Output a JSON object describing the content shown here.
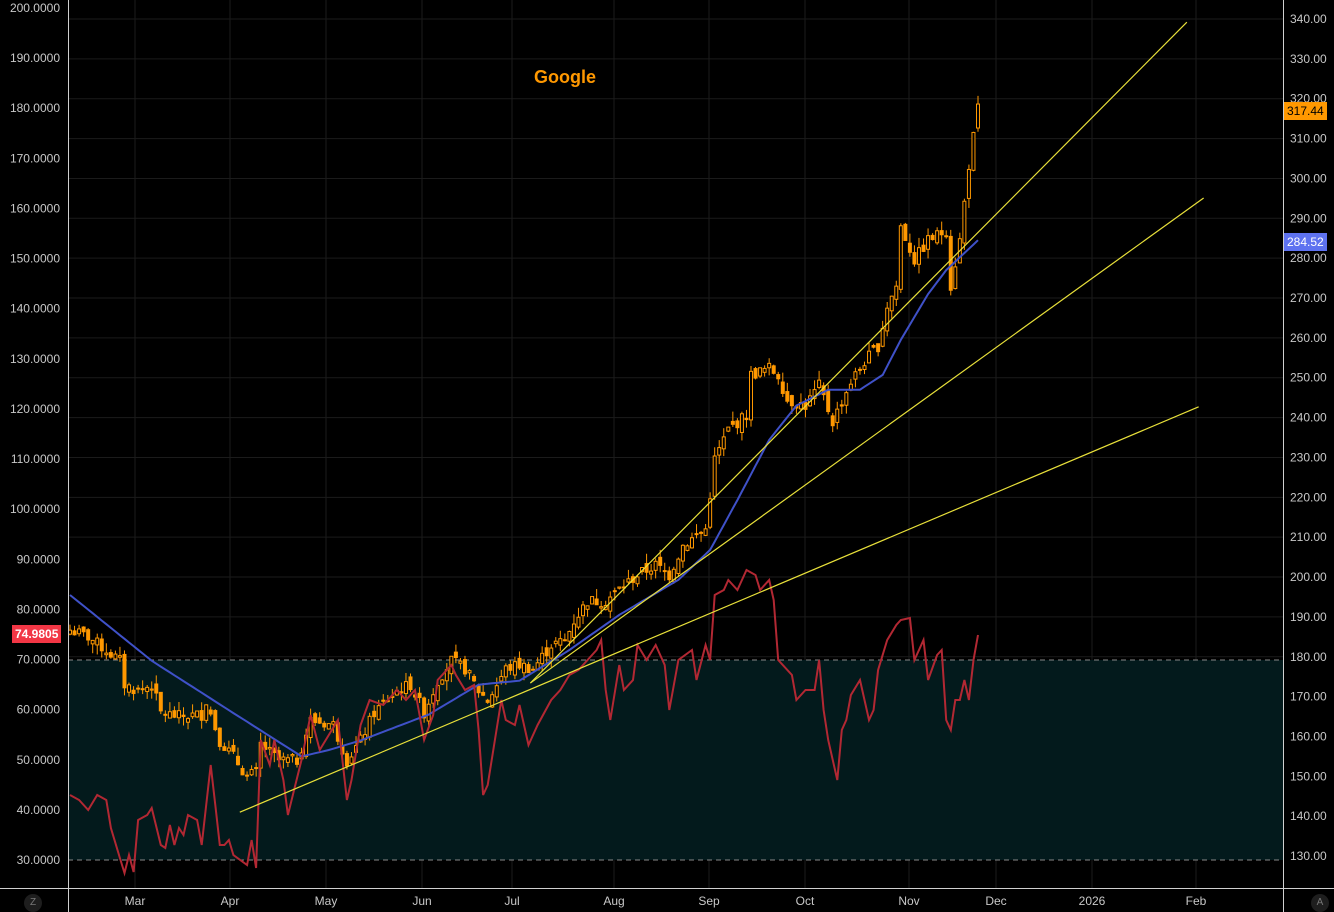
{
  "chart_data": {
    "type": "candlestick",
    "title": "Google",
    "n_bars": 201,
    "price_axis": {
      "side": "right",
      "range": [
        122,
        342
      ],
      "ticks": [
        130,
        140,
        150,
        160,
        170,
        180,
        190,
        200,
        210,
        220,
        230,
        240,
        250,
        260,
        270,
        280,
        290,
        300,
        310,
        320,
        330,
        340
      ]
    },
    "rsi_axis": {
      "side": "left",
      "range": [
        24.6,
        201
      ],
      "ticks": [
        "200.0000",
        "190.0000",
        "180.0000",
        "170.0000",
        "160.0000",
        "150.0000",
        "140.0000",
        "130.0000",
        "120.0000",
        "110.0000",
        "100.0000",
        "90.0000",
        "80.0000",
        "70.0000",
        "60.0000",
        "50.0000",
        "40.0000",
        "30.0000"
      ],
      "overbought": 70,
      "oversold": 30
    },
    "x_ticks": [
      "Mar",
      "Apr",
      "May",
      "Jun",
      "Jul",
      "Aug",
      "Sep",
      "Oct",
      "Nov",
      "Dec",
      "2026",
      "Feb"
    ],
    "last_price": "317.44",
    "ma_last": "284.52",
    "rsi_last": "74.9805",
    "colors": {
      "candle": "#ff9800",
      "ma": "#3f51c8",
      "rsi": "#b22833",
      "trend": "#e8e03a",
      "last_price_bg": "#ff9800",
      "ma_bg": "#5e72f0",
      "rsi_bg": "#f23645",
      "band": "#031a1c"
    },
    "close_anchors": [
      [
        0,
        186.7
      ],
      [
        4,
        185
      ],
      [
        11,
        179
      ],
      [
        12,
        173
      ],
      [
        15,
        171.5
      ],
      [
        18,
        173
      ],
      [
        20,
        166
      ],
      [
        24,
        165
      ],
      [
        29,
        165.5
      ],
      [
        30,
        169
      ],
      [
        33,
        159
      ],
      [
        36,
        155
      ],
      [
        39,
        150
      ],
      [
        41,
        151
      ],
      [
        42,
        158
      ],
      [
        46,
        154
      ],
      [
        50,
        154
      ],
      [
        53,
        164
      ],
      [
        58,
        163
      ],
      [
        61,
        154
      ],
      [
        64,
        159
      ],
      [
        67,
        166
      ],
      [
        72,
        171.5
      ],
      [
        75,
        173
      ],
      [
        78,
        166
      ],
      [
        81,
        174
      ],
      [
        84,
        179
      ],
      [
        87,
        177
      ],
      [
        90,
        171.5
      ],
      [
        92,
        169
      ],
      [
        96,
        177
      ],
      [
        99,
        178
      ],
      [
        102,
        177
      ],
      [
        106,
        183
      ],
      [
        109,
        184
      ],
      [
        111,
        189
      ],
      [
        114,
        194
      ],
      [
        118,
        194
      ],
      [
        121,
        197
      ],
      [
        125,
        200.5
      ],
      [
        129,
        203
      ],
      [
        132,
        200.5
      ],
      [
        135,
        208
      ],
      [
        140,
        212
      ],
      [
        142,
        229.5
      ],
      [
        145,
        237
      ],
      [
        149,
        240.6
      ],
      [
        150,
        250.7
      ],
      [
        154,
        252.4
      ],
      [
        156,
        250.7
      ],
      [
        158,
        244.4
      ],
      [
        162,
        243
      ],
      [
        165,
        248
      ],
      [
        168,
        239
      ],
      [
        172,
        249
      ],
      [
        175,
        254
      ],
      [
        178,
        258
      ],
      [
        180,
        268
      ],
      [
        182,
        273
      ],
      [
        183,
        288
      ],
      [
        186,
        279.5
      ],
      [
        189,
        284.5
      ],
      [
        193,
        287
      ],
      [
        194,
        273
      ],
      [
        196,
        284.5
      ],
      [
        198,
        303.4
      ],
      [
        200,
        317.4
      ]
    ],
    "ma_anchors": [
      [
        0,
        195.5
      ],
      [
        18,
        179
      ],
      [
        35,
        166.6
      ],
      [
        51,
        155
      ],
      [
        57,
        156.6
      ],
      [
        64,
        159
      ],
      [
        79,
        165.5
      ],
      [
        90,
        173
      ],
      [
        99,
        174
      ],
      [
        110,
        181.7
      ],
      [
        121,
        190.5
      ],
      [
        134,
        199.3
      ],
      [
        141,
        206.8
      ],
      [
        147,
        219.3
      ],
      [
        154,
        234.4
      ],
      [
        160,
        243
      ],
      [
        167,
        247
      ],
      [
        174,
        247
      ],
      [
        179,
        250.7
      ],
      [
        183,
        259.5
      ],
      [
        189,
        271
      ],
      [
        193,
        277
      ],
      [
        200,
        284.5
      ]
    ],
    "rsi_points": [
      [
        0,
        43
      ],
      [
        2,
        42
      ],
      [
        4,
        40
      ],
      [
        6,
        43
      ],
      [
        8,
        42
      ],
      [
        9,
        36.4
      ],
      [
        11,
        30.4
      ],
      [
        12,
        27.4
      ],
      [
        13,
        31
      ],
      [
        14,
        27.6
      ],
      [
        15,
        38
      ],
      [
        17,
        39
      ],
      [
        18,
        40.4
      ],
      [
        20,
        33
      ],
      [
        21,
        32.4
      ],
      [
        22,
        37
      ],
      [
        23,
        33
      ],
      [
        24,
        36.4
      ],
      [
        25,
        35
      ],
      [
        26,
        39
      ],
      [
        28,
        38
      ],
      [
        29,
        33
      ],
      [
        30,
        41
      ],
      [
        31,
        49
      ],
      [
        32,
        41
      ],
      [
        33,
        33
      ],
      [
        34,
        33
      ],
      [
        35,
        34
      ],
      [
        36,
        31
      ],
      [
        39,
        29
      ],
      [
        40,
        34
      ],
      [
        41,
        28.4
      ],
      [
        42,
        54
      ],
      [
        44,
        49
      ],
      [
        45,
        54
      ],
      [
        47,
        46
      ],
      [
        48,
        39
      ],
      [
        51,
        50
      ],
      [
        53,
        59
      ],
      [
        55,
        52
      ],
      [
        57,
        55
      ],
      [
        59,
        58
      ],
      [
        61,
        42
      ],
      [
        62,
        46
      ],
      [
        64,
        57
      ],
      [
        66,
        62
      ],
      [
        69,
        61
      ],
      [
        72,
        64
      ],
      [
        74,
        62
      ],
      [
        76,
        64
      ],
      [
        78,
        54
      ],
      [
        80,
        59
      ],
      [
        81,
        66
      ],
      [
        84,
        69
      ],
      [
        85,
        67
      ],
      [
        87,
        64
      ],
      [
        89,
        65
      ],
      [
        90,
        56
      ],
      [
        91,
        43
      ],
      [
        92,
        45
      ],
      [
        95,
        62
      ],
      [
        96,
        58
      ],
      [
        98,
        57
      ],
      [
        99,
        61
      ],
      [
        101,
        53
      ],
      [
        103,
        57
      ],
      [
        106,
        62
      ],
      [
        108,
        64
      ],
      [
        110,
        67
      ],
      [
        112,
        68
      ],
      [
        116,
        72
      ],
      [
        117,
        74
      ],
      [
        118,
        64
      ],
      [
        119,
        58
      ],
      [
        121,
        69
      ],
      [
        122,
        64
      ],
      [
        124,
        66
      ],
      [
        125,
        73
      ],
      [
        127,
        70
      ],
      [
        129,
        73
      ],
      [
        131,
        69
      ],
      [
        132,
        60
      ],
      [
        134,
        70
      ],
      [
        137,
        72
      ],
      [
        138,
        66
      ],
      [
        140,
        73
      ],
      [
        141,
        70
      ],
      [
        142,
        83
      ],
      [
        144,
        84
      ],
      [
        145,
        86
      ],
      [
        147,
        84
      ],
      [
        149,
        88
      ],
      [
        151,
        87
      ],
      [
        152,
        84
      ],
      [
        154,
        86
      ],
      [
        155,
        82
      ],
      [
        156,
        70
      ],
      [
        159,
        67
      ],
      [
        160,
        62
      ],
      [
        162,
        64
      ],
      [
        164,
        64
      ],
      [
        165,
        70
      ],
      [
        166,
        60
      ],
      [
        167,
        54
      ],
      [
        169,
        46
      ],
      [
        170,
        56
      ],
      [
        171,
        58
      ],
      [
        172,
        63
      ],
      [
        174,
        66
      ],
      [
        176,
        58
      ],
      [
        177,
        60
      ],
      [
        178,
        68
      ],
      [
        180,
        74
      ],
      [
        182,
        77
      ],
      [
        183,
        78
      ],
      [
        185,
        78.4
      ],
      [
        186,
        70
      ],
      [
        187,
        72
      ],
      [
        188,
        74
      ],
      [
        189,
        66
      ],
      [
        191,
        71
      ],
      [
        192,
        72
      ],
      [
        193,
        58
      ],
      [
        194,
        56
      ],
      [
        195,
        62
      ],
      [
        196,
        62
      ],
      [
        197,
        66
      ],
      [
        198,
        62
      ],
      [
        199,
        70
      ],
      [
        200,
        75
      ]
    ],
    "trend_lines": [
      {
        "from": [
          101.4,
          173.4
        ],
        "to": [
          246,
          339.2
        ]
      },
      {
        "from": [
          101.4,
          173.4
        ],
        "to": [
          249.7,
          295.1
        ]
      },
      {
        "from": [
          37.4,
          141
        ],
        "to": [
          248.6,
          242.7
        ]
      }
    ]
  },
  "axis_buttons": {
    "left": "Z",
    "right": "A"
  }
}
